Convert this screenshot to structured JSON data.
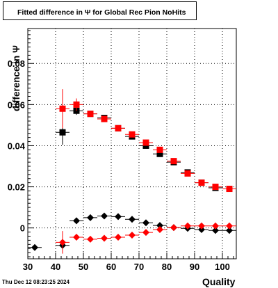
{
  "title": "Fitted difference in  Ψ  for Global Rec Pion NoHits",
  "ylabel": "difference in  Ψ",
  "xlabel": "Quality",
  "timestamp": "Thu Dec 12 08:23:25 2024",
  "colors": {
    "series_black": "#000000",
    "series_red": "#ff0000",
    "grid": "#000000"
  },
  "chart_data": {
    "type": "scatter",
    "title": "Fitted difference in  Ψ  for Global Rec Pion NoHits",
    "xlabel": "Quality",
    "ylabel": "difference in  Ψ",
    "xlim": [
      30,
      105
    ],
    "ylim": [
      -0.015,
      0.097
    ],
    "grid": true,
    "x_ticks": [
      30,
      40,
      50,
      60,
      70,
      80,
      90,
      100
    ],
    "y_ticks": [
      0,
      0.02,
      0.04,
      0.06,
      0.08
    ],
    "x_tick_labels": [
      "30",
      "40",
      "50",
      "60",
      "70",
      "80",
      "90",
      "100"
    ],
    "y_tick_labels": [
      "0",
      "0.02",
      "0.04",
      "0.06",
      "0.08"
    ],
    "series": [
      {
        "marker": "square",
        "color": "#000000",
        "points": [
          {
            "x": 42.5,
            "y": 0.0465,
            "ex": 2.5,
            "ey": 0.006
          },
          {
            "x": 47.5,
            "y": 0.057,
            "ex": 2.5,
            "ey": 0.002
          },
          {
            "x": 52.5,
            "y": 0.0555,
            "ex": 2.5,
            "ey": 0.001
          },
          {
            "x": 57.5,
            "y": 0.0535,
            "ex": 2.5,
            "ey": 0.001
          },
          {
            "x": 62.5,
            "y": 0.0485,
            "ex": 2.5,
            "ey": 0.001
          },
          {
            "x": 67.5,
            "y": 0.0445,
            "ex": 2.5,
            "ey": 0.001
          },
          {
            "x": 72.5,
            "y": 0.04,
            "ex": 2.5,
            "ey": 0.001
          },
          {
            "x": 77.5,
            "y": 0.036,
            "ex": 2.5,
            "ey": 0.001
          },
          {
            "x": 82.5,
            "y": 0.032,
            "ex": 2.5,
            "ey": 0.001
          },
          {
            "x": 87.5,
            "y": 0.027,
            "ex": 2.5,
            "ey": 0.001
          },
          {
            "x": 92.5,
            "y": 0.022,
            "ex": 2.5,
            "ey": 0.001
          },
          {
            "x": 97.5,
            "y": 0.0195,
            "ex": 2.5,
            "ey": 0.001
          },
          {
            "x": 102.5,
            "y": 0.019,
            "ex": 2.5,
            "ey": 0.001
          }
        ]
      },
      {
        "marker": "square",
        "color": "#ff0000",
        "points": [
          {
            "x": 42.5,
            "y": 0.058,
            "ex": 2.5,
            "ey": 0.0095
          },
          {
            "x": 47.5,
            "y": 0.06,
            "ex": 2.5,
            "ey": 0.003
          },
          {
            "x": 52.5,
            "y": 0.0555,
            "ex": 2.5,
            "ey": 0.001
          },
          {
            "x": 57.5,
            "y": 0.053,
            "ex": 2.5,
            "ey": 0.001
          },
          {
            "x": 62.5,
            "y": 0.0485,
            "ex": 2.5,
            "ey": 0.001
          },
          {
            "x": 67.5,
            "y": 0.0455,
            "ex": 2.5,
            "ey": 0.001
          },
          {
            "x": 72.5,
            "y": 0.0415,
            "ex": 2.5,
            "ey": 0.001
          },
          {
            "x": 77.5,
            "y": 0.038,
            "ex": 2.5,
            "ey": 0.001
          },
          {
            "x": 82.5,
            "y": 0.0325,
            "ex": 2.5,
            "ey": 0.001
          },
          {
            "x": 87.5,
            "y": 0.0265,
            "ex": 2.5,
            "ey": 0.001
          },
          {
            "x": 92.5,
            "y": 0.022,
            "ex": 2.5,
            "ey": 0.001
          },
          {
            "x": 97.5,
            "y": 0.02,
            "ex": 2.5,
            "ey": 0.001
          },
          {
            "x": 102.5,
            "y": 0.019,
            "ex": 2.5,
            "ey": 0.001
          }
        ]
      },
      {
        "marker": "diamond",
        "color": "#000000",
        "points": [
          {
            "x": 32.5,
            "y": -0.0095,
            "ex": 2.5,
            "ey": 0.0
          },
          {
            "x": 42.5,
            "y": -0.0085,
            "ex": 2.5,
            "ey": 0.002
          },
          {
            "x": 47.5,
            "y": 0.0035,
            "ex": 2.5,
            "ey": 0.0015
          },
          {
            "x": 52.5,
            "y": 0.005,
            "ex": 2.5,
            "ey": 0.0005
          },
          {
            "x": 57.5,
            "y": 0.0058,
            "ex": 2.5,
            "ey": 0.0005
          },
          {
            "x": 62.5,
            "y": 0.0055,
            "ex": 2.5,
            "ey": 0.0005
          },
          {
            "x": 67.5,
            "y": 0.0042,
            "ex": 2.5,
            "ey": 0.0005
          },
          {
            "x": 72.5,
            "y": 0.0025,
            "ex": 2.5,
            "ey": 0.0005
          },
          {
            "x": 77.5,
            "y": 0.0012,
            "ex": 2.5,
            "ey": 0.0005
          },
          {
            "x": 82.5,
            "y": 0.0002,
            "ex": 2.5,
            "ey": 0.0005
          },
          {
            "x": 87.5,
            "y": -0.0002,
            "ex": 2.5,
            "ey": 0.0005
          },
          {
            "x": 92.5,
            "y": -0.0008,
            "ex": 2.5,
            "ey": 0.0005
          },
          {
            "x": 97.5,
            "y": -0.0012,
            "ex": 2.5,
            "ey": 0.0005
          },
          {
            "x": 102.5,
            "y": -0.0012,
            "ex": 2.5,
            "ey": 0.0005
          }
        ]
      },
      {
        "marker": "diamond",
        "color": "#ff0000",
        "points": [
          {
            "x": 42.5,
            "y": -0.007,
            "ex": 2.5,
            "ey": 0.0055
          },
          {
            "x": 47.5,
            "y": -0.0045,
            "ex": 2.5,
            "ey": 0.0015
          },
          {
            "x": 52.5,
            "y": -0.0055,
            "ex": 2.5,
            "ey": 0.0005
          },
          {
            "x": 57.5,
            "y": -0.005,
            "ex": 2.5,
            "ey": 0.0005
          },
          {
            "x": 62.5,
            "y": -0.0045,
            "ex": 2.5,
            "ey": 0.0005
          },
          {
            "x": 67.5,
            "y": -0.0035,
            "ex": 2.5,
            "ey": 0.0005
          },
          {
            "x": 72.5,
            "y": -0.0022,
            "ex": 2.5,
            "ey": 0.0005
          },
          {
            "x": 77.5,
            "y": -0.0008,
            "ex": 2.5,
            "ey": 0.0005
          },
          {
            "x": 82.5,
            "y": 0.0002,
            "ex": 2.5,
            "ey": 0.0005
          },
          {
            "x": 87.5,
            "y": 0.001,
            "ex": 2.5,
            "ey": 0.0005
          },
          {
            "x": 92.5,
            "y": 0.001,
            "ex": 2.5,
            "ey": 0.0005
          },
          {
            "x": 97.5,
            "y": 0.001,
            "ex": 2.5,
            "ey": 0.0005
          },
          {
            "x": 102.5,
            "y": 0.001,
            "ex": 2.5,
            "ey": 0.0005
          }
        ]
      }
    ]
  }
}
